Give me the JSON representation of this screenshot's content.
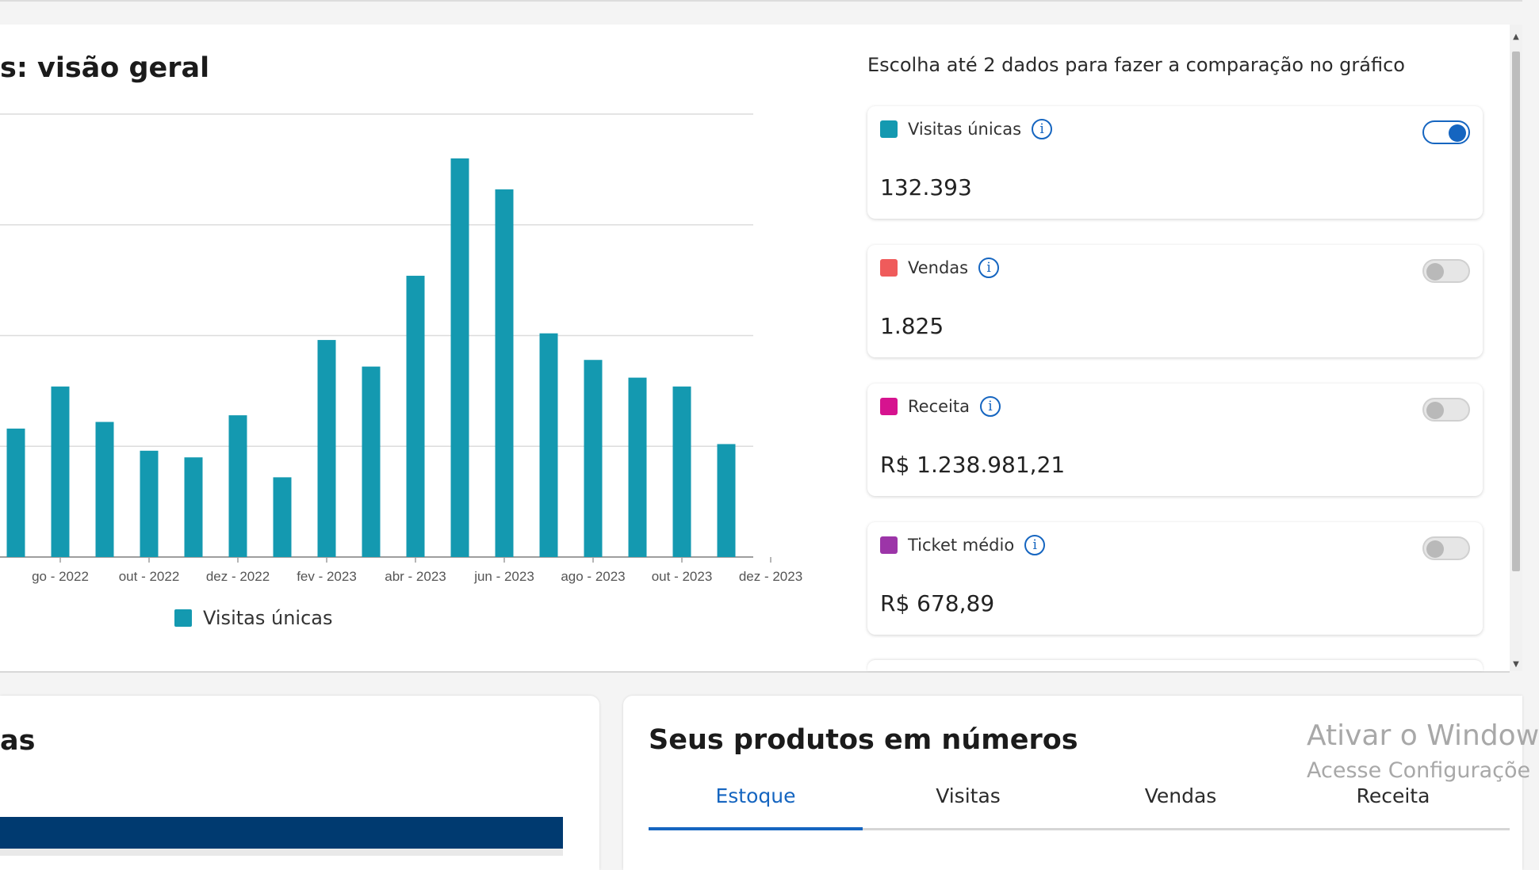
{
  "page": {
    "title": "s: visão geral",
    "compare_label": "Escolha até 2 dados para fazer a comparação no gráfico"
  },
  "metrics": [
    {
      "name": "Visitas únicas",
      "value": "132.393",
      "color": "#1499b0",
      "enabled": true
    },
    {
      "name": "Vendas",
      "value": "1.825",
      "color": "#ef5b5b",
      "enabled": false
    },
    {
      "name": "Receita",
      "value": "R$ 1.238.981,21",
      "color": "#d6138f",
      "enabled": false
    },
    {
      "name": "Ticket médio",
      "value": "R$ 678,89",
      "color": "#9c35a8",
      "enabled": false
    }
  ],
  "chart_data": {
    "type": "bar",
    "series": [
      {
        "name": "Visitas únicas",
        "color": "#1499b0",
        "values": [
          5.8,
          7.7,
          6.1,
          4.8,
          4.5,
          6.4,
          3.6,
          9.8,
          8.6,
          12.7,
          18.0,
          16.6,
          10.1,
          8.9,
          8.1,
          7.7,
          5.1
        ]
      }
    ],
    "tick_labels": [
      "go - 2022",
      "out - 2022",
      "dez - 2022",
      "fev - 2023",
      "abr - 2023",
      "jun - 2023",
      "ago - 2023",
      "out - 2023",
      "dez - 2023"
    ],
    "ylim": [
      0,
      20
    ],
    "grid": true,
    "legend_position": "bottom"
  },
  "bottom_left": {
    "title": "as"
  },
  "products": {
    "title": "Seus produtos em números",
    "tabs": [
      "Estoque",
      "Visitas",
      "Vendas",
      "Receita"
    ],
    "active_tab": "Estoque"
  },
  "watermark": {
    "line1": "Ativar o Window",
    "line2": "Acesse Configuraçõe"
  }
}
